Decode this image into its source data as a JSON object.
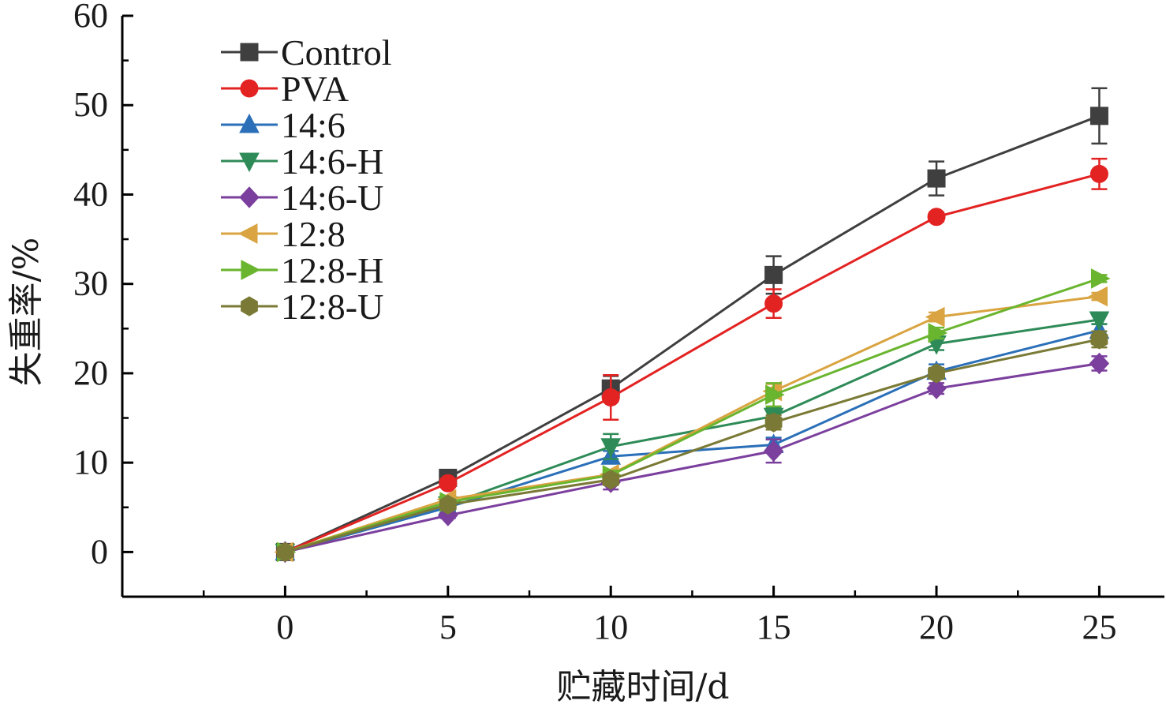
{
  "chart_data": {
    "type": "line",
    "title": "",
    "xlabel": "贮藏时间/d",
    "ylabel": "失重率/%",
    "xlim": [
      -5,
      27
    ],
    "ylim": [
      -5,
      60
    ],
    "x_ticks": [
      0,
      5,
      10,
      15,
      20,
      25
    ],
    "y_ticks": [
      0,
      10,
      20,
      30,
      40,
      50,
      60
    ],
    "grid": false,
    "legend_position": "top-left",
    "x": [
      0,
      5,
      10,
      15,
      20,
      25
    ],
    "series": [
      {
        "name": "Control",
        "color": "#3f3f3f",
        "marker": "square",
        "values": [
          0,
          8.3,
          18.3,
          31.0,
          41.8,
          48.8
        ],
        "errors": [
          0,
          0.4,
          1.4,
          2.1,
          1.9,
          3.1
        ]
      },
      {
        "name": "PVA",
        "color": "#e32222",
        "marker": "circle",
        "values": [
          0,
          7.7,
          17.3,
          27.8,
          37.5,
          42.3
        ],
        "errors": [
          0,
          0.4,
          2.5,
          1.6,
          0.5,
          1.7
        ]
      },
      {
        "name": "14:6",
        "color": "#2a6fb8",
        "marker": "triangle-up",
        "values": [
          0,
          5.0,
          10.7,
          12.0,
          20.2,
          24.8
        ],
        "errors": [
          0,
          0.3,
          0.6,
          0.8,
          0.8,
          0.7
        ]
      },
      {
        "name": "14:6-H",
        "color": "#2e8b57",
        "marker": "triangle-down",
        "values": [
          0,
          5.3,
          11.8,
          15.2,
          23.3,
          26.0
        ],
        "errors": [
          0,
          0.3,
          1.4,
          0.9,
          0.7,
          0.5
        ]
      },
      {
        "name": "14:6-U",
        "color": "#7b3f9e",
        "marker": "diamond",
        "values": [
          0,
          4.1,
          7.8,
          11.3,
          18.3,
          21.1
        ],
        "errors": [
          0,
          0.3,
          0.8,
          1.3,
          0.6,
          0.8
        ]
      },
      {
        "name": "12:8",
        "color": "#d9a441",
        "marker": "triangle-left",
        "values": [
          0,
          5.9,
          8.7,
          18.0,
          26.3,
          28.6
        ],
        "errors": [
          0,
          0.3,
          0.5,
          0.8,
          0.5,
          0.4
        ]
      },
      {
        "name": "12:8-H",
        "color": "#6ab52f",
        "marker": "triangle-right",
        "values": [
          0,
          5.6,
          8.6,
          17.6,
          24.5,
          30.6
        ],
        "errors": [
          0,
          0.3,
          0.5,
          1.3,
          0.6,
          0.4
        ]
      },
      {
        "name": "12:8-U",
        "color": "#7a7a36",
        "marker": "hexagon",
        "values": [
          0,
          5.3,
          8.1,
          14.5,
          20.0,
          23.8
        ],
        "errors": [
          0,
          0.3,
          0.6,
          0.8,
          0.6,
          0.9
        ]
      }
    ]
  }
}
